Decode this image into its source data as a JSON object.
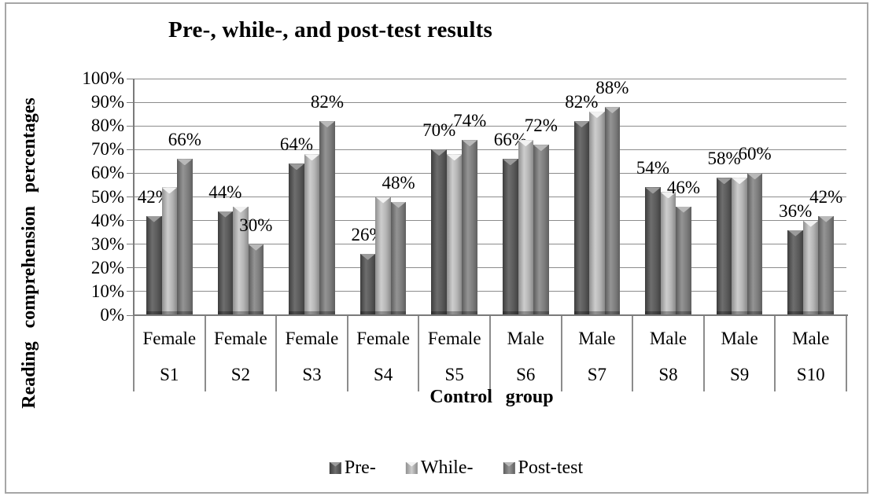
{
  "figure": {
    "title": "Pre-, while-, and post-test results",
    "x_axis_title": "Control group",
    "y_axis_title": "Reading comprehension  percentages"
  },
  "chart_data": {
    "type": "bar",
    "title": "Pre-, while-, and post-test results",
    "xlabel": "Control group",
    "ylabel": "Reading comprehension percentages",
    "categories": [
      "S1",
      "S2",
      "S3",
      "S4",
      "S5",
      "S6",
      "S7",
      "S8",
      "S9",
      "S10"
    ],
    "group_labels": [
      "Female",
      "Female",
      "Female",
      "Female",
      "Female",
      "Male",
      "Male",
      "Male",
      "Male",
      "Male"
    ],
    "series": [
      {
        "name": "Pre-",
        "color": "#4f4f4f",
        "values": [
          42,
          44,
          64,
          26,
          70,
          66,
          82,
          54,
          58,
          36
        ],
        "data_labels": [
          "42%",
          "44%",
          "64%",
          "26%",
          "70%",
          "66%",
          "82%",
          "54%",
          "58%",
          "36%"
        ]
      },
      {
        "name": "While-",
        "color": "#c3c3c3",
        "values": [
          54,
          46,
          68,
          50,
          68,
          74,
          86,
          52,
          58,
          40
        ],
        "data_labels": []
      },
      {
        "name": "Post-test",
        "color": "#7f7f7f",
        "values": [
          66,
          30,
          82,
          48,
          74,
          72,
          88,
          46,
          60,
          42
        ],
        "data_labels": [
          "66%",
          "30%",
          "82%",
          "48%",
          "74%",
          "72%",
          "88%",
          "46%",
          "60%",
          "42%"
        ]
      }
    ],
    "y_ticks": [
      "0%",
      "10%",
      "20%",
      "30%",
      "40%",
      "50%",
      "60%",
      "70%",
      "80%",
      "90%",
      "100%"
    ],
    "ylim": [
      0,
      100
    ],
    "grid": true,
    "legend_position": "bottom",
    "legend_entries": [
      "Pre-",
      "While-",
      "Post-test"
    ]
  }
}
